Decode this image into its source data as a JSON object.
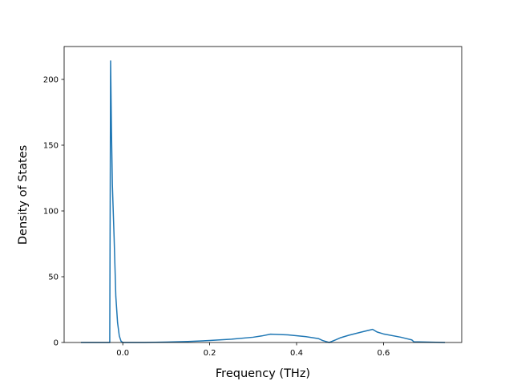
{
  "chart_data": {
    "type": "line",
    "title": "",
    "xlabel": "Frequency (THz)",
    "ylabel": "Density of States",
    "xlim": [
      -0.135,
      0.78
    ],
    "ylim": [
      0,
      225
    ],
    "xticks": [
      {
        "value": 0.0,
        "label": "0.0"
      },
      {
        "value": 0.2,
        "label": "0.2"
      },
      {
        "value": 0.4,
        "label": "0.4"
      },
      {
        "value": 0.6,
        "label": "0.6"
      }
    ],
    "yticks": [
      {
        "value": 0,
        "label": "0"
      },
      {
        "value": 50,
        "label": "50"
      },
      {
        "value": 100,
        "label": "100"
      },
      {
        "value": 150,
        "label": "150"
      },
      {
        "value": 200,
        "label": "200"
      }
    ],
    "grid": false,
    "legend": "none",
    "series": [
      {
        "color": "#1f77b4",
        "x": [
          -0.095,
          -0.03,
          -0.028,
          -0.026,
          -0.024,
          -0.02,
          -0.016,
          -0.012,
          -0.008,
          -0.004,
          0.0,
          0.05,
          0.1,
          0.15,
          0.2,
          0.25,
          0.3,
          0.32,
          0.34,
          0.38,
          0.42,
          0.45,
          0.46,
          0.475,
          0.49,
          0.5,
          0.52,
          0.55,
          0.575,
          0.585,
          0.6,
          0.64,
          0.665,
          0.67,
          0.74
        ],
        "y": [
          0,
          0,
          214,
          160,
          120,
          80,
          35,
          15,
          5,
          1,
          0,
          0,
          0.3,
          0.8,
          1.5,
          2.5,
          4,
          5,
          6.3,
          5.8,
          4.5,
          3,
          1.5,
          0,
          2,
          3.5,
          5.5,
          8,
          10,
          8,
          6.5,
          4,
          2,
          0.5,
          0
        ]
      }
    ]
  }
}
